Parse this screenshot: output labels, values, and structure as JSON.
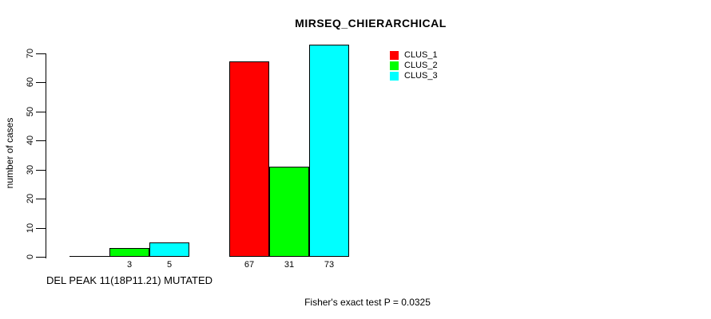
{
  "chart_data": {
    "type": "bar",
    "title": "MIRSEQ_CHIERARCHICAL",
    "ylabel": "number of cases",
    "xlabel": "",
    "ylim": [
      0,
      73
    ],
    "yticks": [
      0,
      10,
      20,
      30,
      40,
      50,
      60,
      70
    ],
    "grid": false,
    "legend_position": "top-right",
    "series": [
      {
        "name": "CLUS_1",
        "color": "#ff0000"
      },
      {
        "name": "CLUS_2",
        "color": "#00ff00"
      },
      {
        "name": "CLUS_3",
        "color": "#00ffff"
      }
    ],
    "groups": [
      {
        "label": "DEL PEAK 11(18P11.21) MUTATED",
        "values": [
          0,
          3,
          5
        ],
        "bar_labels": [
          "",
          "3",
          "5"
        ]
      },
      {
        "label": "",
        "values": [
          67,
          31,
          73
        ],
        "bar_labels": [
          "67",
          "31",
          "73"
        ]
      }
    ],
    "annotation": "Fisher's exact test P = 0.0325"
  }
}
